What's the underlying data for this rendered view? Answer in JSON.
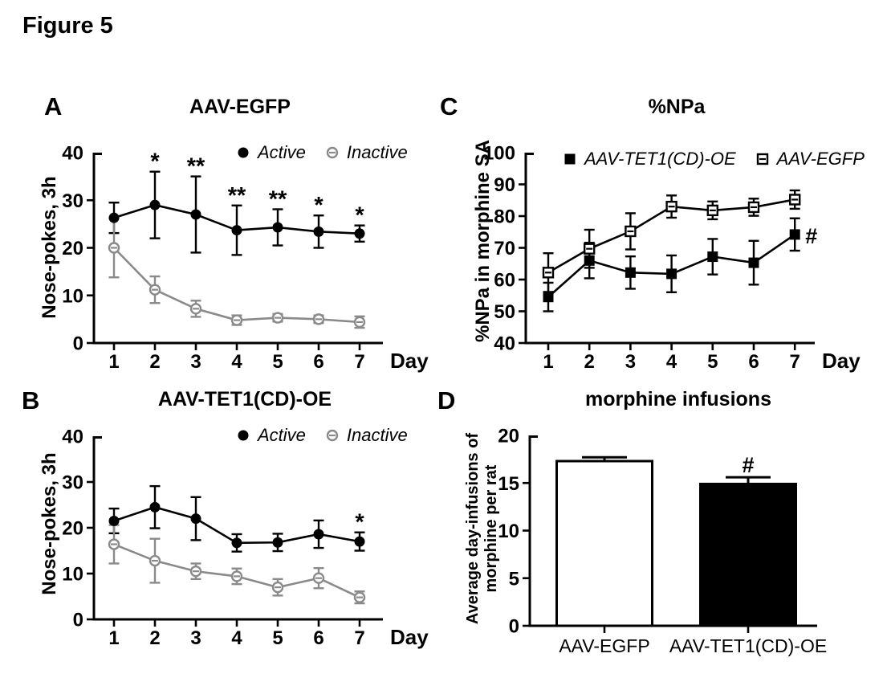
{
  "figure_title": "Figure 5",
  "colors": {
    "black": "#000000",
    "gray": "#8a8a8a"
  },
  "chart_data": [
    {
      "panel": "A",
      "type": "line",
      "title": "AAV-EGFP",
      "xlabel": "Day",
      "ylabel": "Nose-pokes, 3h",
      "x": [
        1,
        2,
        3,
        4,
        5,
        6,
        7
      ],
      "ylim": [
        0,
        40
      ],
      "yticks": [
        0,
        10,
        20,
        30,
        40
      ],
      "legend_position": "top-right-inside",
      "series": [
        {
          "name": "Active",
          "marker": "circle-filled",
          "color": "#000000",
          "values": [
            26.3,
            29,
            27,
            23.7,
            24.3,
            23.4,
            23
          ],
          "errors": [
            3.2,
            7,
            8,
            5.2,
            3.8,
            3.4,
            1.7
          ]
        },
        {
          "name": "Inactive",
          "marker": "circle-dash",
          "color": "#8a8a8a",
          "values": [
            20,
            11.2,
            7.2,
            4.8,
            5.3,
            5,
            4.4
          ],
          "errors": [
            6.2,
            2.8,
            1.7,
            1,
            0.8,
            0.8,
            1.2
          ]
        }
      ],
      "annotations": [
        {
          "x": 2,
          "series": 0,
          "text": "*"
        },
        {
          "x": 3,
          "series": 0,
          "text": "**"
        },
        {
          "x": 4,
          "series": 0,
          "text": "**"
        },
        {
          "x": 5,
          "series": 0,
          "text": "**"
        },
        {
          "x": 6,
          "series": 0,
          "text": "*"
        },
        {
          "x": 7,
          "series": 0,
          "text": "*"
        }
      ]
    },
    {
      "panel": "B",
      "type": "line",
      "title": "AAV-TET1(CD)-OE",
      "xlabel": "Day",
      "ylabel": "Nose-pokes, 3h",
      "x": [
        1,
        2,
        3,
        4,
        5,
        6,
        7
      ],
      "ylim": [
        0,
        40
      ],
      "yticks": [
        0,
        10,
        20,
        30,
        40
      ],
      "legend_position": "top-right-inside",
      "series": [
        {
          "name": "Active",
          "marker": "circle-filled",
          "color": "#000000",
          "values": [
            21.5,
            24.5,
            22,
            16.7,
            16.8,
            18.6,
            17
          ],
          "errors": [
            2.7,
            4.6,
            4.7,
            1.9,
            1.9,
            3,
            2
          ]
        },
        {
          "name": "Inactive",
          "marker": "circle-dash",
          "color": "#8a8a8a",
          "values": [
            16.4,
            12.8,
            10.5,
            9.4,
            7,
            9,
            4.8
          ],
          "errors": [
            4.2,
            4.8,
            1.7,
            1.7,
            1.8,
            2.2,
            1.3
          ]
        }
      ],
      "annotations": [
        {
          "x": 7,
          "series": 0,
          "text": "*"
        }
      ]
    },
    {
      "panel": "C",
      "type": "line",
      "title": "%NPa",
      "xlabel": "Day",
      "ylabel": "%NPa in morphine SA",
      "x": [
        1,
        2,
        3,
        4,
        5,
        6,
        7
      ],
      "ylim": [
        40,
        100
      ],
      "yticks": [
        40,
        50,
        60,
        70,
        80,
        90,
        100
      ],
      "legend_position": "top-inside",
      "series": [
        {
          "name": "AAV-TET1(CD)-OE",
          "marker": "square-filled",
          "color": "#000000",
          "values": [
            54.5,
            66,
            62.2,
            61.8,
            67.2,
            65.3,
            74.2
          ],
          "errors": [
            4.5,
            5.6,
            5.1,
            5.8,
            5.6,
            6.9,
            5.1
          ]
        },
        {
          "name": "AAV-EGFP",
          "marker": "square-dash",
          "color": "#000000",
          "values": [
            62.2,
            69.7,
            75.2,
            83,
            81.8,
            82.8,
            85.2
          ],
          "errors": [
            6.1,
            6,
            5.7,
            3.5,
            2.8,
            2.7,
            2.9
          ]
        }
      ],
      "annotations": [
        {
          "x": 7,
          "series": 0,
          "text": "#",
          "placement": "right"
        }
      ]
    },
    {
      "panel": "D",
      "type": "bar",
      "title": "morphine infusions",
      "ylabel": "Average day-infusions of morphine per rat",
      "ylabel_lines": [
        "Average day-infusions of",
        "morphine per rat"
      ],
      "categories": [
        "AAV-EGFP",
        "AAV-TET1(CD)-OE"
      ],
      "values": [
        17.3,
        14.9
      ],
      "errors": [
        0.4,
        0.7
      ],
      "bar_fills": [
        "#ffffff",
        "#000000"
      ],
      "ylim": [
        0,
        20
      ],
      "yticks": [
        0,
        5,
        10,
        15,
        20
      ],
      "annotations": [
        {
          "bar": 1,
          "text": "#"
        }
      ]
    }
  ]
}
